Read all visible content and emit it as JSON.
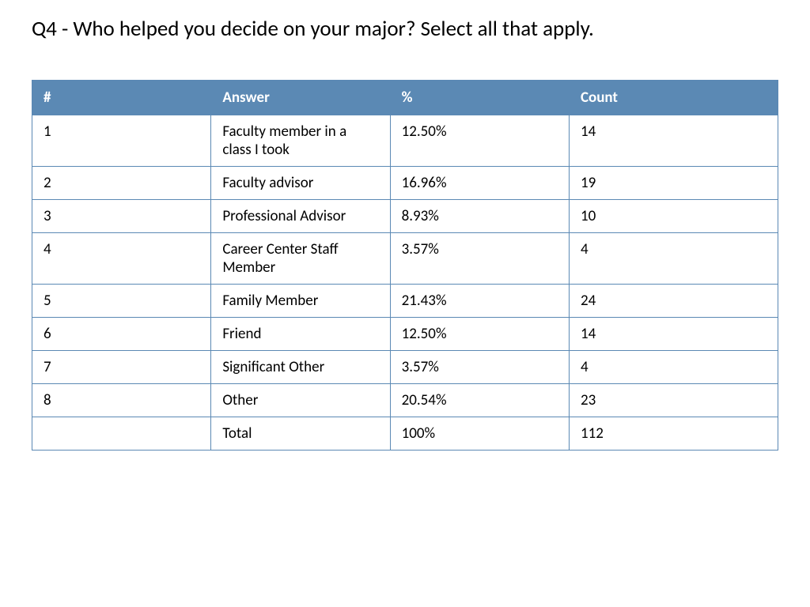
{
  "title": "Q4 - Who helped you decide on your major?  Select all that apply.",
  "table": {
    "header_bg": "#5b89b4",
    "header_color": "#ffffff",
    "border_color": "#5b89b4",
    "cell_bg": "#ffffff",
    "text_color": "#000000",
    "font_family": "Calibri",
    "header_fontsize": 19,
    "cell_fontsize": 19,
    "columns": [
      "#",
      "Answer",
      "%",
      "Count"
    ],
    "rows": [
      {
        "num": "1",
        "answer": "Faculty member in a class I took",
        "pct": "12.50%",
        "count": "14"
      },
      {
        "num": "2",
        "answer": "Faculty advisor",
        "pct": "16.96%",
        "count": "19"
      },
      {
        "num": "3",
        "answer": "Professional Advisor",
        "pct": "8.93%",
        "count": "10"
      },
      {
        "num": "4",
        "answer": "Career Center Staff Member",
        "pct": "3.57%",
        "count": "4"
      },
      {
        "num": "5",
        "answer": "Family Member",
        "pct": "21.43%",
        "count": "24"
      },
      {
        "num": "6",
        "answer": "Friend",
        "pct": "12.50%",
        "count": "14"
      },
      {
        "num": "7",
        "answer": "Significant Other",
        "pct": "3.57%",
        "count": "4"
      },
      {
        "num": "8",
        "answer": "Other",
        "pct": "20.54%",
        "count": "23"
      },
      {
        "num": "",
        "answer": "Total",
        "pct": "100%",
        "count": "112"
      }
    ]
  }
}
